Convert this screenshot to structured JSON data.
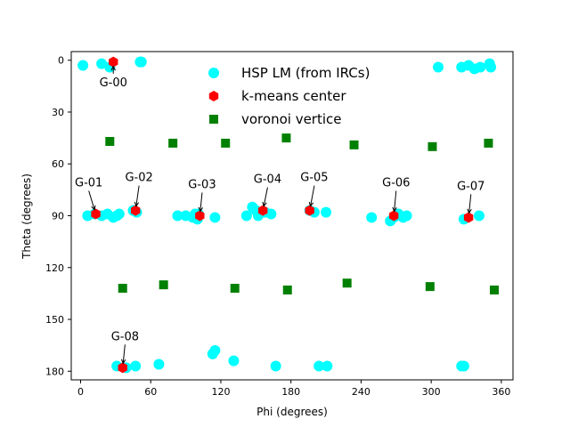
{
  "chart_data": {
    "type": "scatter",
    "xlabel": "Phi (degrees)",
    "ylabel": "Theta (degrees)",
    "xlim": [
      -8,
      370
    ],
    "ylim": [
      185,
      -5
    ],
    "y_inverted": true,
    "xticks": [
      0,
      60,
      120,
      180,
      240,
      300,
      360
    ],
    "yticks": [
      0,
      30,
      60,
      90,
      120,
      150,
      180
    ],
    "grid": false,
    "legend_position": "upper-center",
    "series": [
      {
        "name": "HSP LM (from IRCs)",
        "marker": "circle",
        "color": "#00ffff",
        "points": [
          [
            2,
            3
          ],
          [
            18,
            2
          ],
          [
            25,
            4
          ],
          [
            51,
            1
          ],
          [
            52,
            1
          ],
          [
            306,
            4
          ],
          [
            326,
            4
          ],
          [
            332,
            3
          ],
          [
            337,
            5
          ],
          [
            342,
            4
          ],
          [
            350,
            2
          ],
          [
            351,
            4
          ],
          [
            6,
            90
          ],
          [
            12,
            89
          ],
          [
            18,
            90
          ],
          [
            23,
            89
          ],
          [
            28,
            91
          ],
          [
            31,
            90
          ],
          [
            33,
            89
          ],
          [
            45,
            87
          ],
          [
            46,
            87
          ],
          [
            48,
            88
          ],
          [
            83,
            90
          ],
          [
            90,
            90
          ],
          [
            96,
            91
          ],
          [
            98,
            89
          ],
          [
            100,
            92
          ],
          [
            101,
            89
          ],
          [
            115,
            91
          ],
          [
            142,
            90
          ],
          [
            147,
            85
          ],
          [
            150,
            87
          ],
          [
            152,
            90
          ],
          [
            158,
            88
          ],
          [
            163,
            89
          ],
          [
            196,
            87
          ],
          [
            200,
            88
          ],
          [
            210,
            88
          ],
          [
            249,
            91
          ],
          [
            265,
            93
          ],
          [
            268,
            91
          ],
          [
            272,
            89
          ],
          [
            276,
            91
          ],
          [
            279,
            90
          ],
          [
            328,
            92
          ],
          [
            341,
            90
          ],
          [
            31,
            177
          ],
          [
            39,
            178
          ],
          [
            47,
            177
          ],
          [
            67,
            176
          ],
          [
            113,
            170
          ],
          [
            115,
            168
          ],
          [
            131,
            174
          ],
          [
            167,
            177
          ],
          [
            204,
            177
          ],
          [
            211,
            177
          ],
          [
            326,
            177
          ],
          [
            328,
            177
          ]
        ]
      },
      {
        "name": "k-means center",
        "marker": "hexagon",
        "color": "#ff0000",
        "points": [
          [
            28,
            1
          ],
          [
            13,
            89
          ],
          [
            47,
            87
          ],
          [
            102,
            90
          ],
          [
            156,
            87
          ],
          [
            196,
            87
          ],
          [
            268,
            90
          ],
          [
            332,
            91
          ],
          [
            36,
            178
          ]
        ]
      },
      {
        "name": "voronoi vertice",
        "marker": "square",
        "color": "#008000",
        "points": [
          [
            25,
            47
          ],
          [
            79,
            48
          ],
          [
            124,
            48
          ],
          [
            176,
            45
          ],
          [
            234,
            49
          ],
          [
            301,
            50
          ],
          [
            349,
            48
          ],
          [
            36,
            132
          ],
          [
            71,
            130
          ],
          [
            132,
            132
          ],
          [
            177,
            133
          ],
          [
            228,
            129
          ],
          [
            299,
            131
          ],
          [
            354,
            133
          ]
        ]
      }
    ],
    "annotations": [
      {
        "text": "G-00",
        "x": 28,
        "y": 1,
        "text_x": 28,
        "text_y": 15
      },
      {
        "text": "G-01",
        "x": 13,
        "y": 89,
        "text_x": 7,
        "text_y": 73
      },
      {
        "text": "G-02",
        "x": 47,
        "y": 87,
        "text_x": 50,
        "text_y": 70
      },
      {
        "text": "G-03",
        "x": 102,
        "y": 90,
        "text_x": 104,
        "text_y": 74
      },
      {
        "text": "G-04",
        "x": 156,
        "y": 87,
        "text_x": 160,
        "text_y": 71
      },
      {
        "text": "G-05",
        "x": 196,
        "y": 87,
        "text_x": 200,
        "text_y": 70
      },
      {
        "text": "G-06",
        "x": 268,
        "y": 90,
        "text_x": 270,
        "text_y": 73
      },
      {
        "text": "G-07",
        "x": 332,
        "y": 91,
        "text_x": 334,
        "text_y": 75
      },
      {
        "text": "G-08",
        "x": 36,
        "y": 178,
        "text_x": 38,
        "text_y": 162
      }
    ]
  }
}
